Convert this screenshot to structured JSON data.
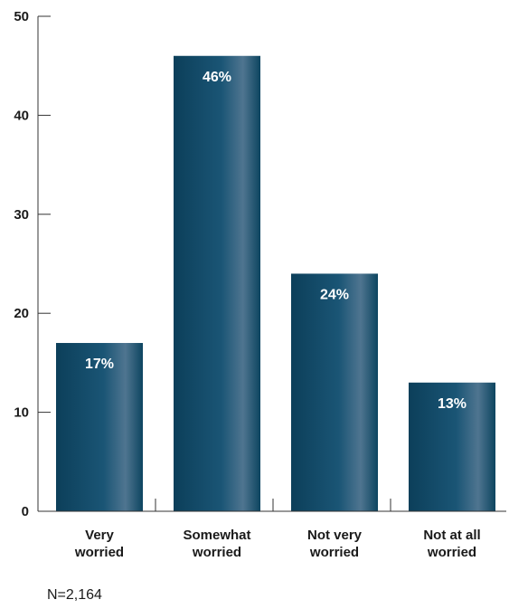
{
  "chart_data": {
    "type": "bar",
    "categories": [
      [
        "Very",
        "worried"
      ],
      [
        "Somewhat",
        "worried"
      ],
      [
        "Not very",
        "worried"
      ],
      [
        "Not at all",
        "worried"
      ]
    ],
    "values": [
      17,
      46,
      24,
      13
    ],
    "data_labels": [
      "17%",
      "46%",
      "24%",
      "13%"
    ],
    "yticks": [
      0,
      10,
      20,
      30,
      40,
      50
    ],
    "ylim": [
      0,
      50
    ],
    "grid": false,
    "bar_color": "#0e4a66",
    "bar_highlight_color": "#4f7590",
    "note": "N=2,164"
  }
}
